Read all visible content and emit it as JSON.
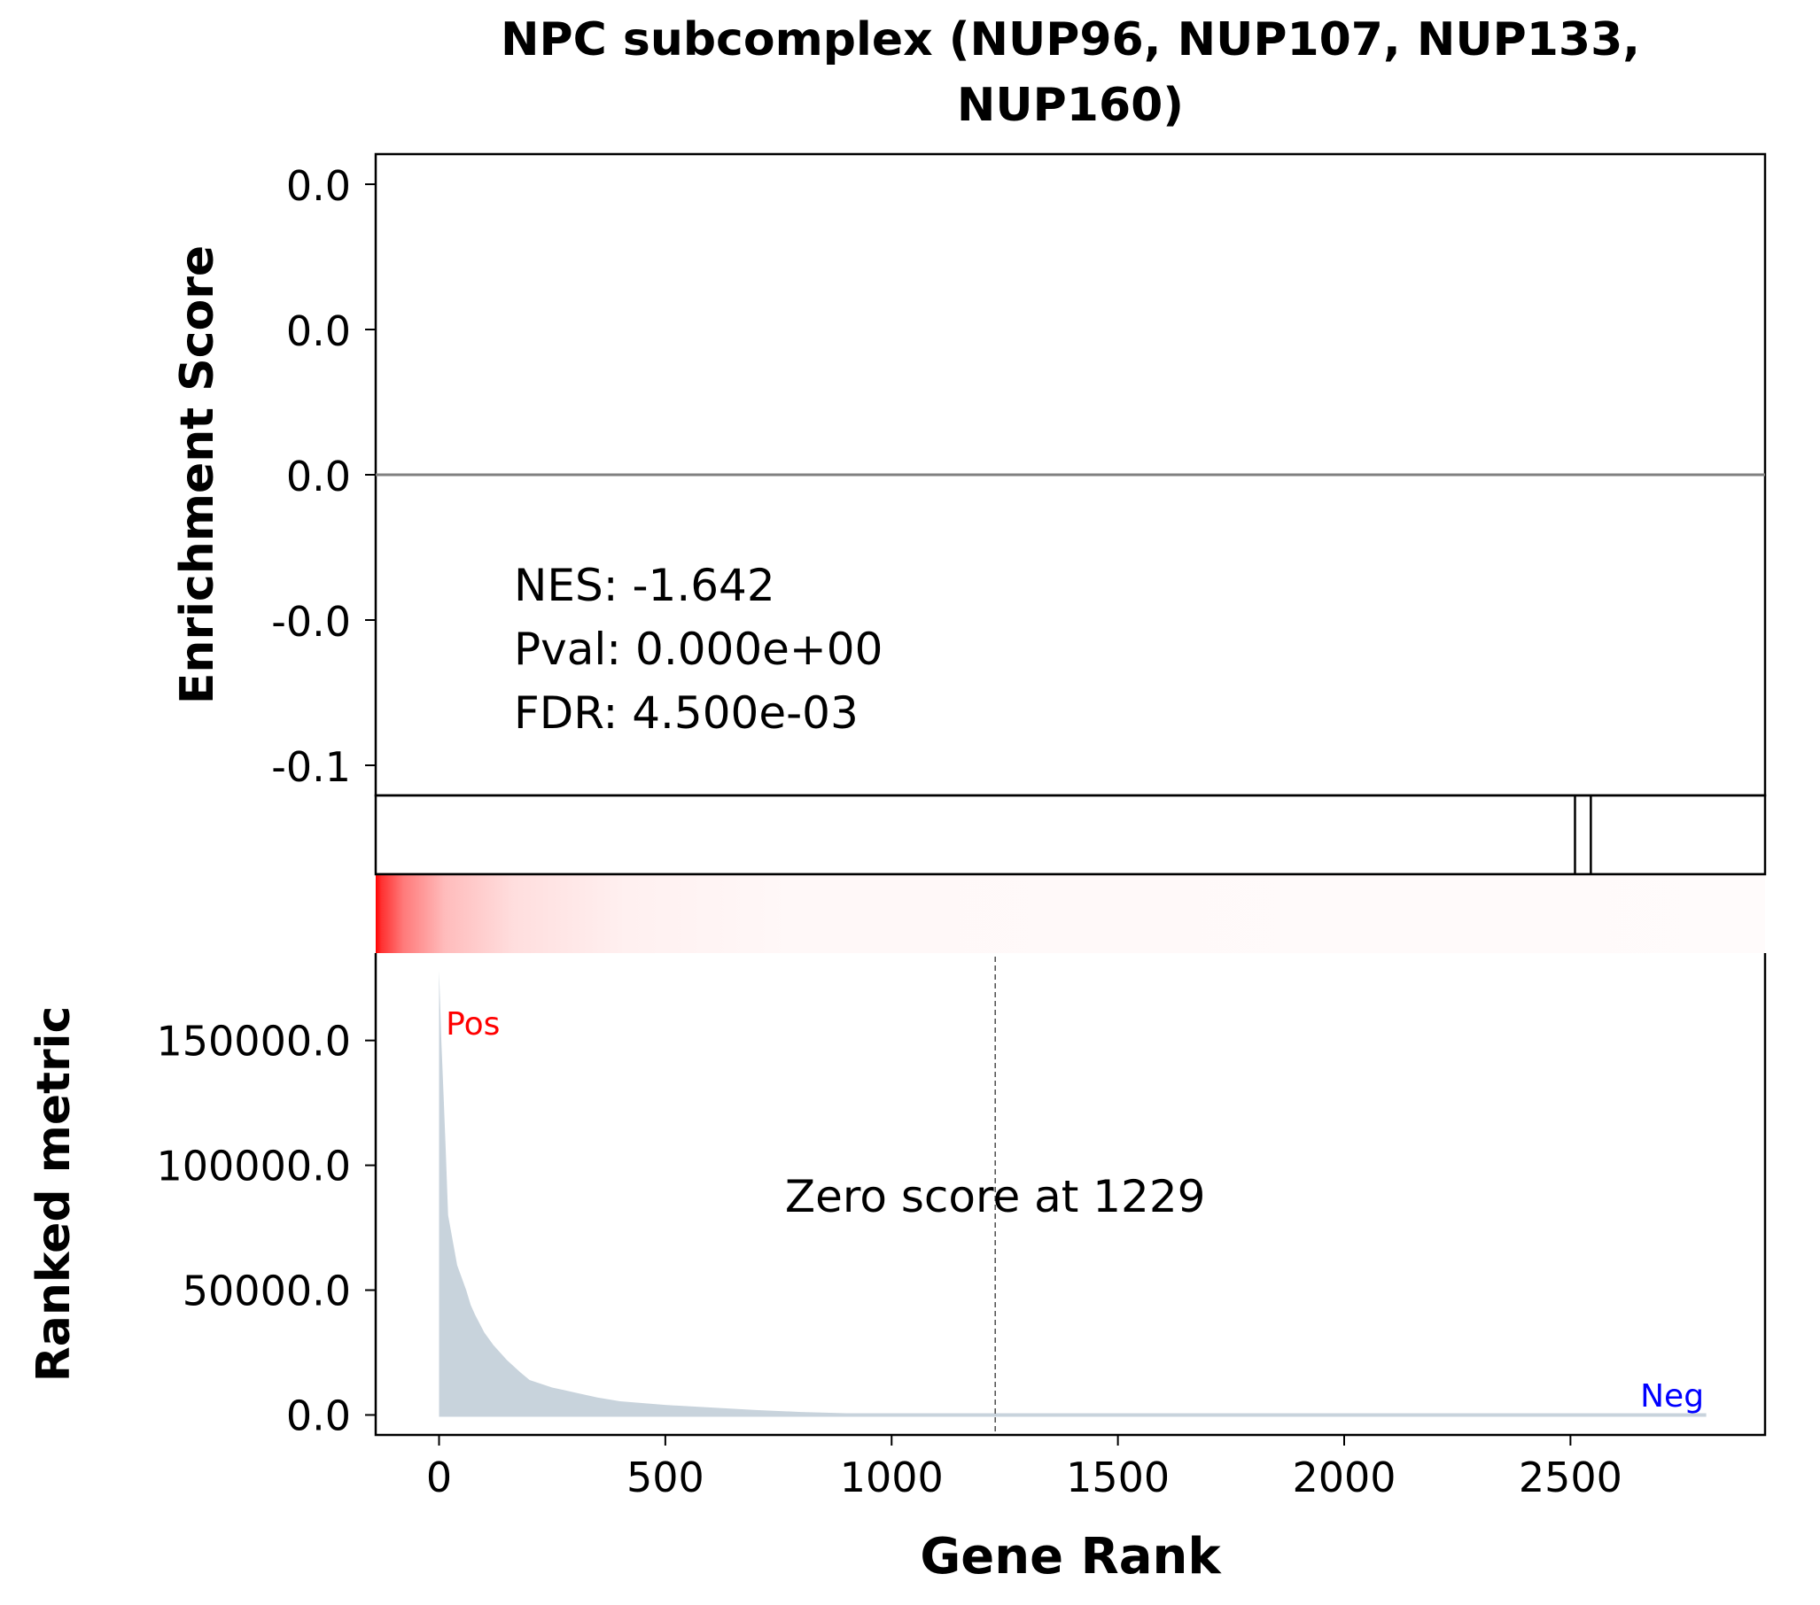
{
  "chart_data": {
    "type": "area",
    "title_lines": [
      "NPC subcomplex (NUP96, NUP107, NUP133,",
      "NUP160)"
    ],
    "top_panel": {
      "ylabel": "Enrichment Score",
      "yticks": [
        "0.0",
        "0.0",
        "0.0",
        "-0.0",
        "-0.1"
      ],
      "zero_line": 0,
      "stats": {
        "nes": "NES: -1.642",
        "pval": "Pval: 0.000e+00",
        "fdr": "FDR: 4.500e-03"
      }
    },
    "hits_panel": {
      "hit_ranks": [
        2510,
        2545
      ]
    },
    "ranking_heatmap": {
      "colormap": "white-to-red",
      "high_color": "#ff0000",
      "direction": "red at rank 0, fading to white"
    },
    "bottom_panel": {
      "ylabel": "Ranked metric",
      "xlabel": "Gene Rank",
      "xlim": [
        -140,
        2930
      ],
      "ylim": [
        -8000,
        185000
      ],
      "xticks": [
        "0",
        "500",
        "1000",
        "1500",
        "2000",
        "2500"
      ],
      "xtick_values": [
        0,
        500,
        1000,
        1500,
        2000,
        2500
      ],
      "yticks": [
        "0.0",
        "50000.0",
        "100000.0",
        "150000.0"
      ],
      "ytick_values": [
        0,
        50000,
        100000,
        150000
      ],
      "series": [
        {
          "fill_color": "#c8d3dc",
          "x": [
            0,
            5,
            10,
            15,
            20,
            30,
            40,
            50,
            60,
            70,
            80,
            100,
            120,
            150,
            180,
            200,
            250,
            300,
            350,
            400,
            500,
            600,
            700,
            800,
            900,
            1000,
            1100,
            1229,
            1500,
            2000,
            2500,
            2800
          ],
          "y": [
            178000,
            150000,
            128000,
            105000,
            80000,
            70000,
            60000,
            55000,
            50000,
            44000,
            40000,
            33000,
            28000,
            22000,
            17000,
            14000,
            11000,
            9000,
            7000,
            5500,
            4000,
            3000,
            2000,
            1200,
            700,
            300,
            150,
            0,
            0,
            0,
            0,
            0
          ]
        }
      ],
      "zero_cross": 1229,
      "annotation": "Zero score at 1229",
      "pos_label": "Pos",
      "neg_label": "Neg",
      "pos_color": "#ff0000",
      "neg_color": "#0000ff"
    }
  }
}
